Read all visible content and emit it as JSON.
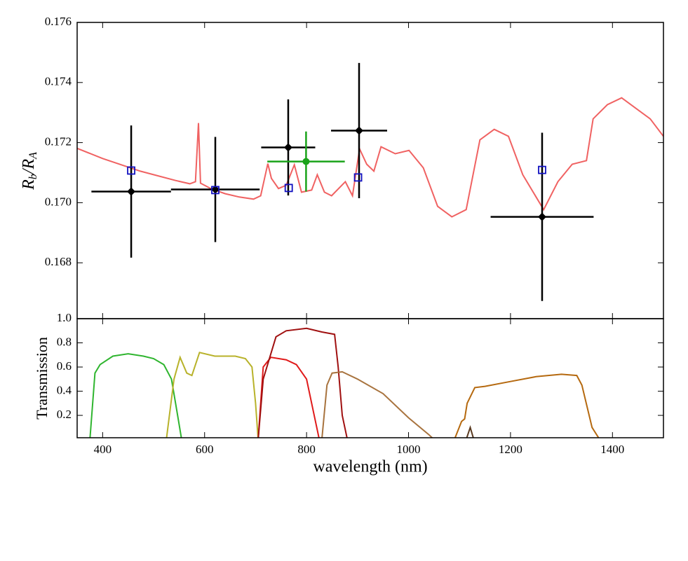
{
  "chart_data": [
    {
      "type": "line",
      "ylabel": [
        "R",
        "b",
        "/R",
        "A"
      ],
      "xlim": [
        350,
        1500
      ],
      "ylim": [
        0.16614,
        0.176
      ],
      "yticks": [
        0.168,
        {
          "value": 0.17,
          "label": "0.170"
        },
        0.172,
        0.174,
        0.176
      ],
      "series": [
        {
          "type": "line",
          "color": "#f06262",
          "x": [
            350,
            400,
            474,
            543,
            571,
            582,
            588,
            592,
            612,
            640,
            668,
            696,
            710,
            724,
            731,
            745,
            760,
            776,
            790,
            810,
            821,
            835,
            849,
            876,
            890,
            904,
            918,
            932,
            946,
            974,
            1001,
            1029,
            1057,
            1085,
            1113,
            1140,
            1168,
            1196,
            1224,
            1265,
            1293,
            1321,
            1349,
            1362,
            1390,
            1418,
            1446,
            1474,
            1500
          ],
          "values": [
            0.17181,
            0.17147,
            0.17105,
            0.17074,
            0.17063,
            0.1707,
            0.17265,
            0.17065,
            0.17047,
            0.1703,
            0.17019,
            0.17012,
            0.17023,
            0.1713,
            0.17081,
            0.17047,
            0.17058,
            0.17126,
            0.17035,
            0.17042,
            0.17093,
            0.17035,
            0.17023,
            0.1707,
            0.17023,
            0.17179,
            0.17128,
            0.17105,
            0.17186,
            0.17163,
            0.17174,
            0.17116,
            0.16988,
            0.16953,
            0.16977,
            0.17209,
            0.17244,
            0.17221,
            0.17093,
            0.16977,
            0.1707,
            0.17128,
            0.1714,
            0.17279,
            0.17326,
            0.17349,
            0.17314,
            0.17279,
            0.17221
          ]
        },
        {
          "type": "errorbar",
          "color": "#000000",
          "marker": "diamond",
          "x": [
            456,
            621,
            764,
            903,
            1262
          ],
          "values": [
            0.17037,
            0.17044,
            0.17184,
            0.1724,
            0.16953
          ],
          "xerr": [
            78,
            87,
            53,
            55,
            101
          ],
          "yerr": [
            0.0022,
            0.00175,
            0.0016,
            0.00225,
            0.0028
          ]
        },
        {
          "type": "errorbar",
          "color": "#1aa31a",
          "marker": "circle",
          "x": [
            799
          ],
          "values": [
            0.17137
          ],
          "xerr": [
            76
          ],
          "yerr": [
            0.001
          ]
        },
        {
          "type": "scatter",
          "color": "#1010c0",
          "marker": "square",
          "x": [
            456,
            621,
            765,
            901,
            1262
          ],
          "values": [
            0.17107,
            0.17042,
            0.17049,
            0.17084,
            0.17109
          ]
        }
      ]
    },
    {
      "type": "line",
      "xlabel": "wavelength (nm)",
      "ylabel": "Transmission",
      "xlim": [
        350,
        1500
      ],
      "ylim": [
        0.015,
        1.0
      ],
      "xticks": [
        400,
        600,
        800,
        1000,
        1200,
        1400
      ],
      "yticks": [
        0.2,
        0.4,
        0.6,
        0.8,
        {
          "value": 1,
          "label": "1.0"
        }
      ],
      "series": [
        {
          "type": "line",
          "color": "#2fb52f",
          "x": [
            375,
            385,
            395,
            420,
            450,
            480,
            500,
            520,
            535,
            545,
            555
          ],
          "values": [
            0,
            0.55,
            0.62,
            0.69,
            0.71,
            0.69,
            0.67,
            0.62,
            0.5,
            0.25,
            0
          ]
        },
        {
          "type": "line",
          "color": "#b8b22a",
          "x": [
            525,
            540,
            552,
            565,
            575,
            590,
            620,
            660,
            680,
            693,
            700,
            705
          ],
          "values": [
            0,
            0.5,
            0.68,
            0.55,
            0.53,
            0.72,
            0.69,
            0.69,
            0.67,
            0.6,
            0.3,
            0
          ]
        },
        {
          "type": "line",
          "color": "#e01a1a",
          "x": [
            705,
            715,
            730,
            760,
            780,
            800,
            815,
            825
          ],
          "values": [
            0,
            0.6,
            0.68,
            0.66,
            0.62,
            0.5,
            0.2,
            0
          ]
        },
        {
          "type": "line",
          "color": "#a01010",
          "x": [
            705,
            715,
            740,
            760,
            800,
            830,
            855,
            862,
            870,
            880
          ],
          "values": [
            0,
            0.5,
            0.85,
            0.9,
            0.92,
            0.89,
            0.87,
            0.6,
            0.2,
            0
          ]
        },
        {
          "type": "line",
          "color": "#a8733e",
          "x": [
            830,
            840,
            850,
            870,
            900,
            950,
            1000,
            1040,
            1050
          ],
          "values": [
            0,
            0.45,
            0.55,
            0.56,
            0.5,
            0.38,
            0.18,
            0.04,
            0
          ]
        },
        {
          "type": "line",
          "color": "#5a3a20",
          "x": [
            1113,
            1121,
            1128
          ],
          "values": [
            0,
            0.1,
            0
          ]
        },
        {
          "type": "line",
          "color": "#b5690f",
          "x": [
            1090,
            1104,
            1110,
            1115,
            1130,
            1150,
            1200,
            1250,
            1300,
            1330,
            1340,
            1360,
            1375
          ],
          "values": [
            0,
            0.15,
            0.17,
            0.3,
            0.43,
            0.44,
            0.48,
            0.52,
            0.54,
            0.53,
            0.45,
            0.1,
            0
          ]
        }
      ]
    }
  ]
}
